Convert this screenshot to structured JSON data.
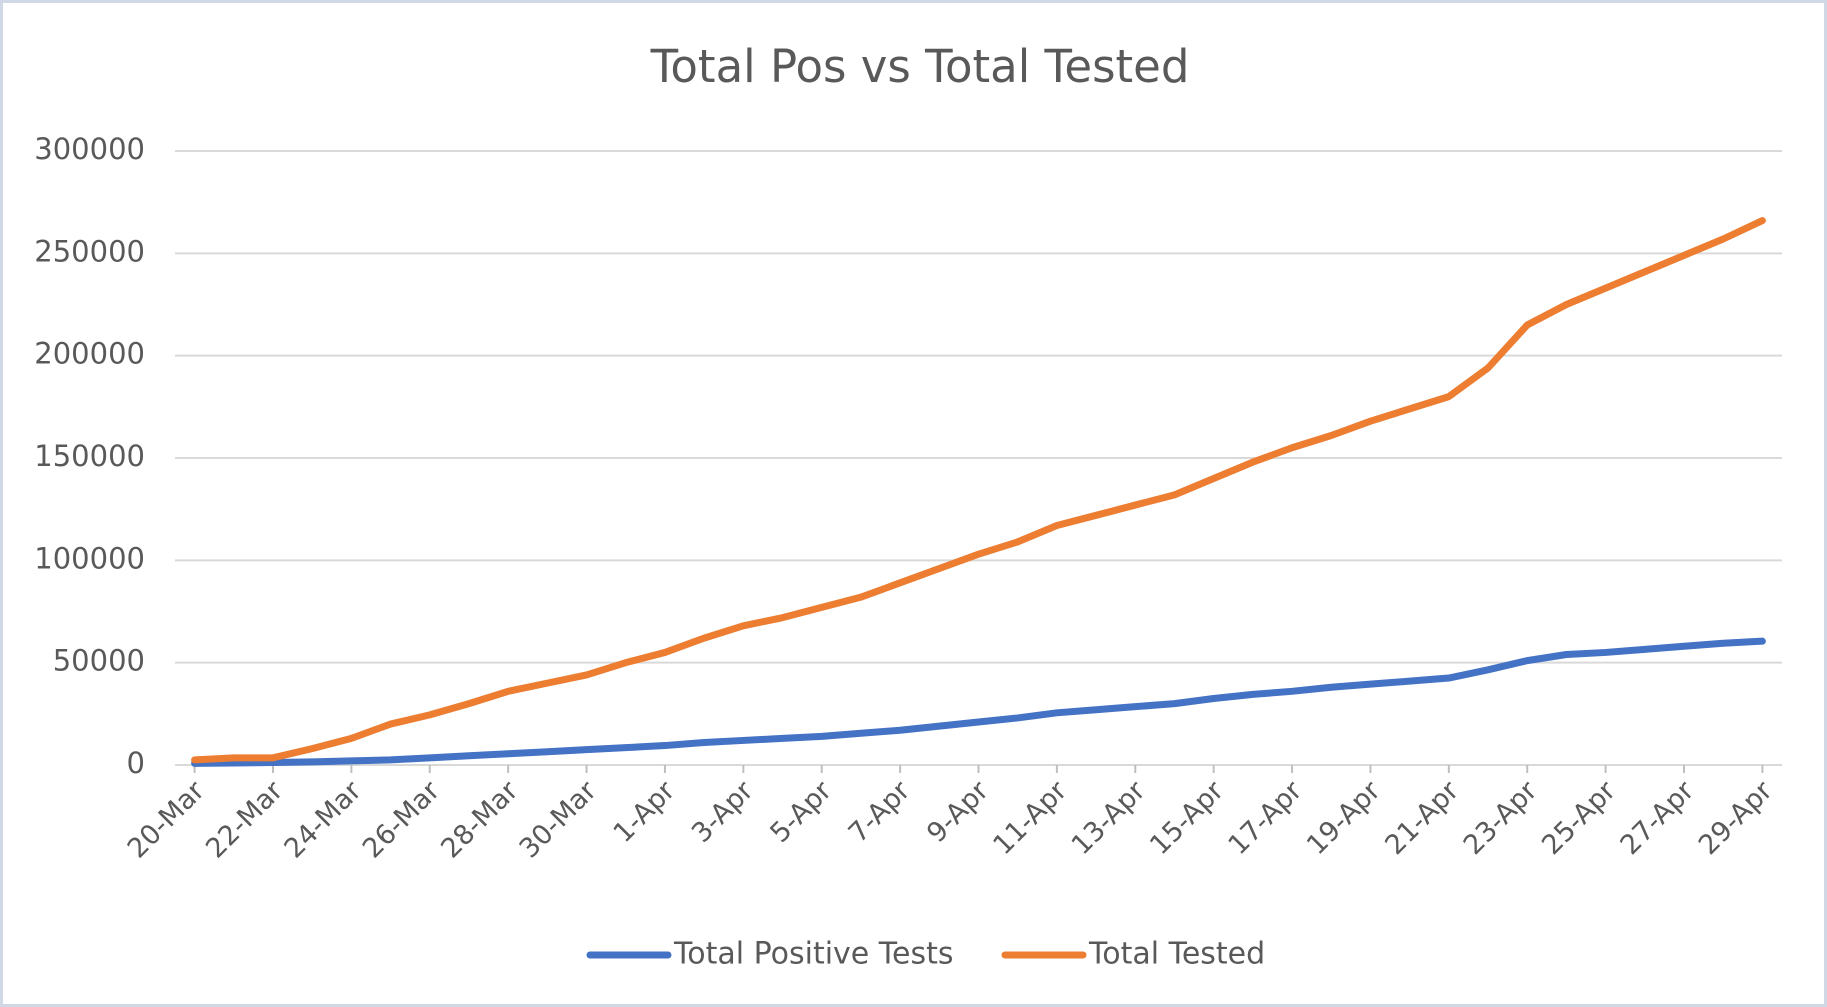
{
  "chart_data": {
    "type": "line",
    "title": "Total Pos vs Total Tested",
    "categories": [
      "20-Mar",
      null,
      "22-Mar",
      null,
      "24-Mar",
      null,
      "26-Mar",
      null,
      "28-Mar",
      null,
      "30-Mar",
      null,
      "1-Apr",
      null,
      "3-Apr",
      null,
      "5-Apr",
      null,
      "7-Apr",
      null,
      "9-Apr",
      null,
      "11-Apr",
      null,
      "13-Apr",
      null,
      "15-Apr",
      null,
      "17-Apr",
      null,
      "19-Apr",
      null,
      "21-Apr",
      null,
      "23-Apr",
      null,
      "25-Apr",
      null,
      "27-Apr",
      null,
      "29-Apr"
    ],
    "series": [
      {
        "name": "Total Positive Tests",
        "color": "#4472c4",
        "values": [
          800,
          1000,
          1200,
          1500,
          2000,
          2500,
          3500,
          4500,
          5500,
          6500,
          7500,
          8500,
          9500,
          11000,
          12000,
          13000,
          14000,
          15500,
          17000,
          19000,
          21000,
          23000,
          25500,
          27000,
          28500,
          30000,
          32500,
          34500,
          36000,
          38000,
          39500,
          41000,
          42500,
          46500,
          51000,
          54000,
          55000,
          56500,
          58000,
          59500,
          60500
        ]
      },
      {
        "name": "Total Tested",
        "color": "#ed7d31",
        "values": [
          2500,
          3500,
          3500,
          8000,
          13000,
          20000,
          24500,
          30000,
          36000,
          40000,
          44000,
          50000,
          55000,
          62000,
          68000,
          72000,
          77000,
          82000,
          89000,
          96000,
          103000,
          109000,
          117000,
          122000,
          127000,
          132000,
          140000,
          148000,
          155000,
          161000,
          168000,
          174000,
          180000,
          194000,
          215000,
          225000,
          233000,
          241000,
          249000,
          257000,
          266000
        ]
      }
    ],
    "ylim": [
      0,
      300000
    ],
    "yticks": [
      0,
      50000,
      100000,
      150000,
      200000,
      250000,
      300000
    ],
    "grid": true,
    "legend": "bottom"
  }
}
